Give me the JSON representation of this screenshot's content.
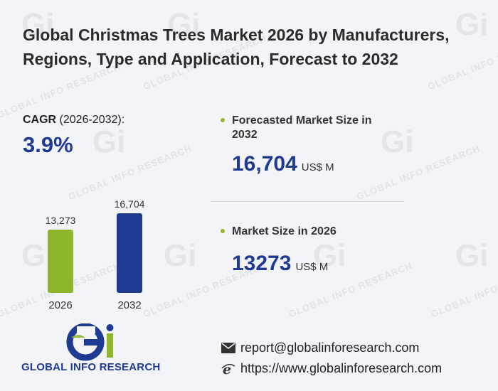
{
  "title": "Global Christmas Trees Market 2026 by Manufacturers, Regions, Type and Application, Forecast to 2032",
  "cagr": {
    "label_bold": "CAGR",
    "label_rest": " (2026-2032):",
    "value": "3.9%"
  },
  "metrics": {
    "forecast": {
      "label": "Forecasted Market Size in 2032",
      "value": "16,704",
      "unit": "US$ M"
    },
    "current": {
      "label": "Market Size in 2026",
      "value": "13273",
      "unit": "US$ M"
    }
  },
  "chart_data": {
    "type": "bar",
    "categories": [
      "2026",
      "2032"
    ],
    "values": [
      13273,
      16704
    ],
    "value_labels": [
      "13,273",
      "16,704"
    ],
    "colors": [
      "#8fb52c",
      "#1f3a93"
    ],
    "title": "",
    "xlabel": "",
    "ylabel": ""
  },
  "brand": {
    "name": "GLOBAL INFO RESEARCH",
    "watermark_text": "GLOBAL INFO RESEARCH",
    "primary_color": "#1f3a93",
    "accent_color": "#8fb52c"
  },
  "contact": {
    "email": "report@globalinforesearch.com",
    "website": "https://www.globalinforesearch.com",
    "email_icon": "mail-icon",
    "web_icon": "browser-icon"
  }
}
